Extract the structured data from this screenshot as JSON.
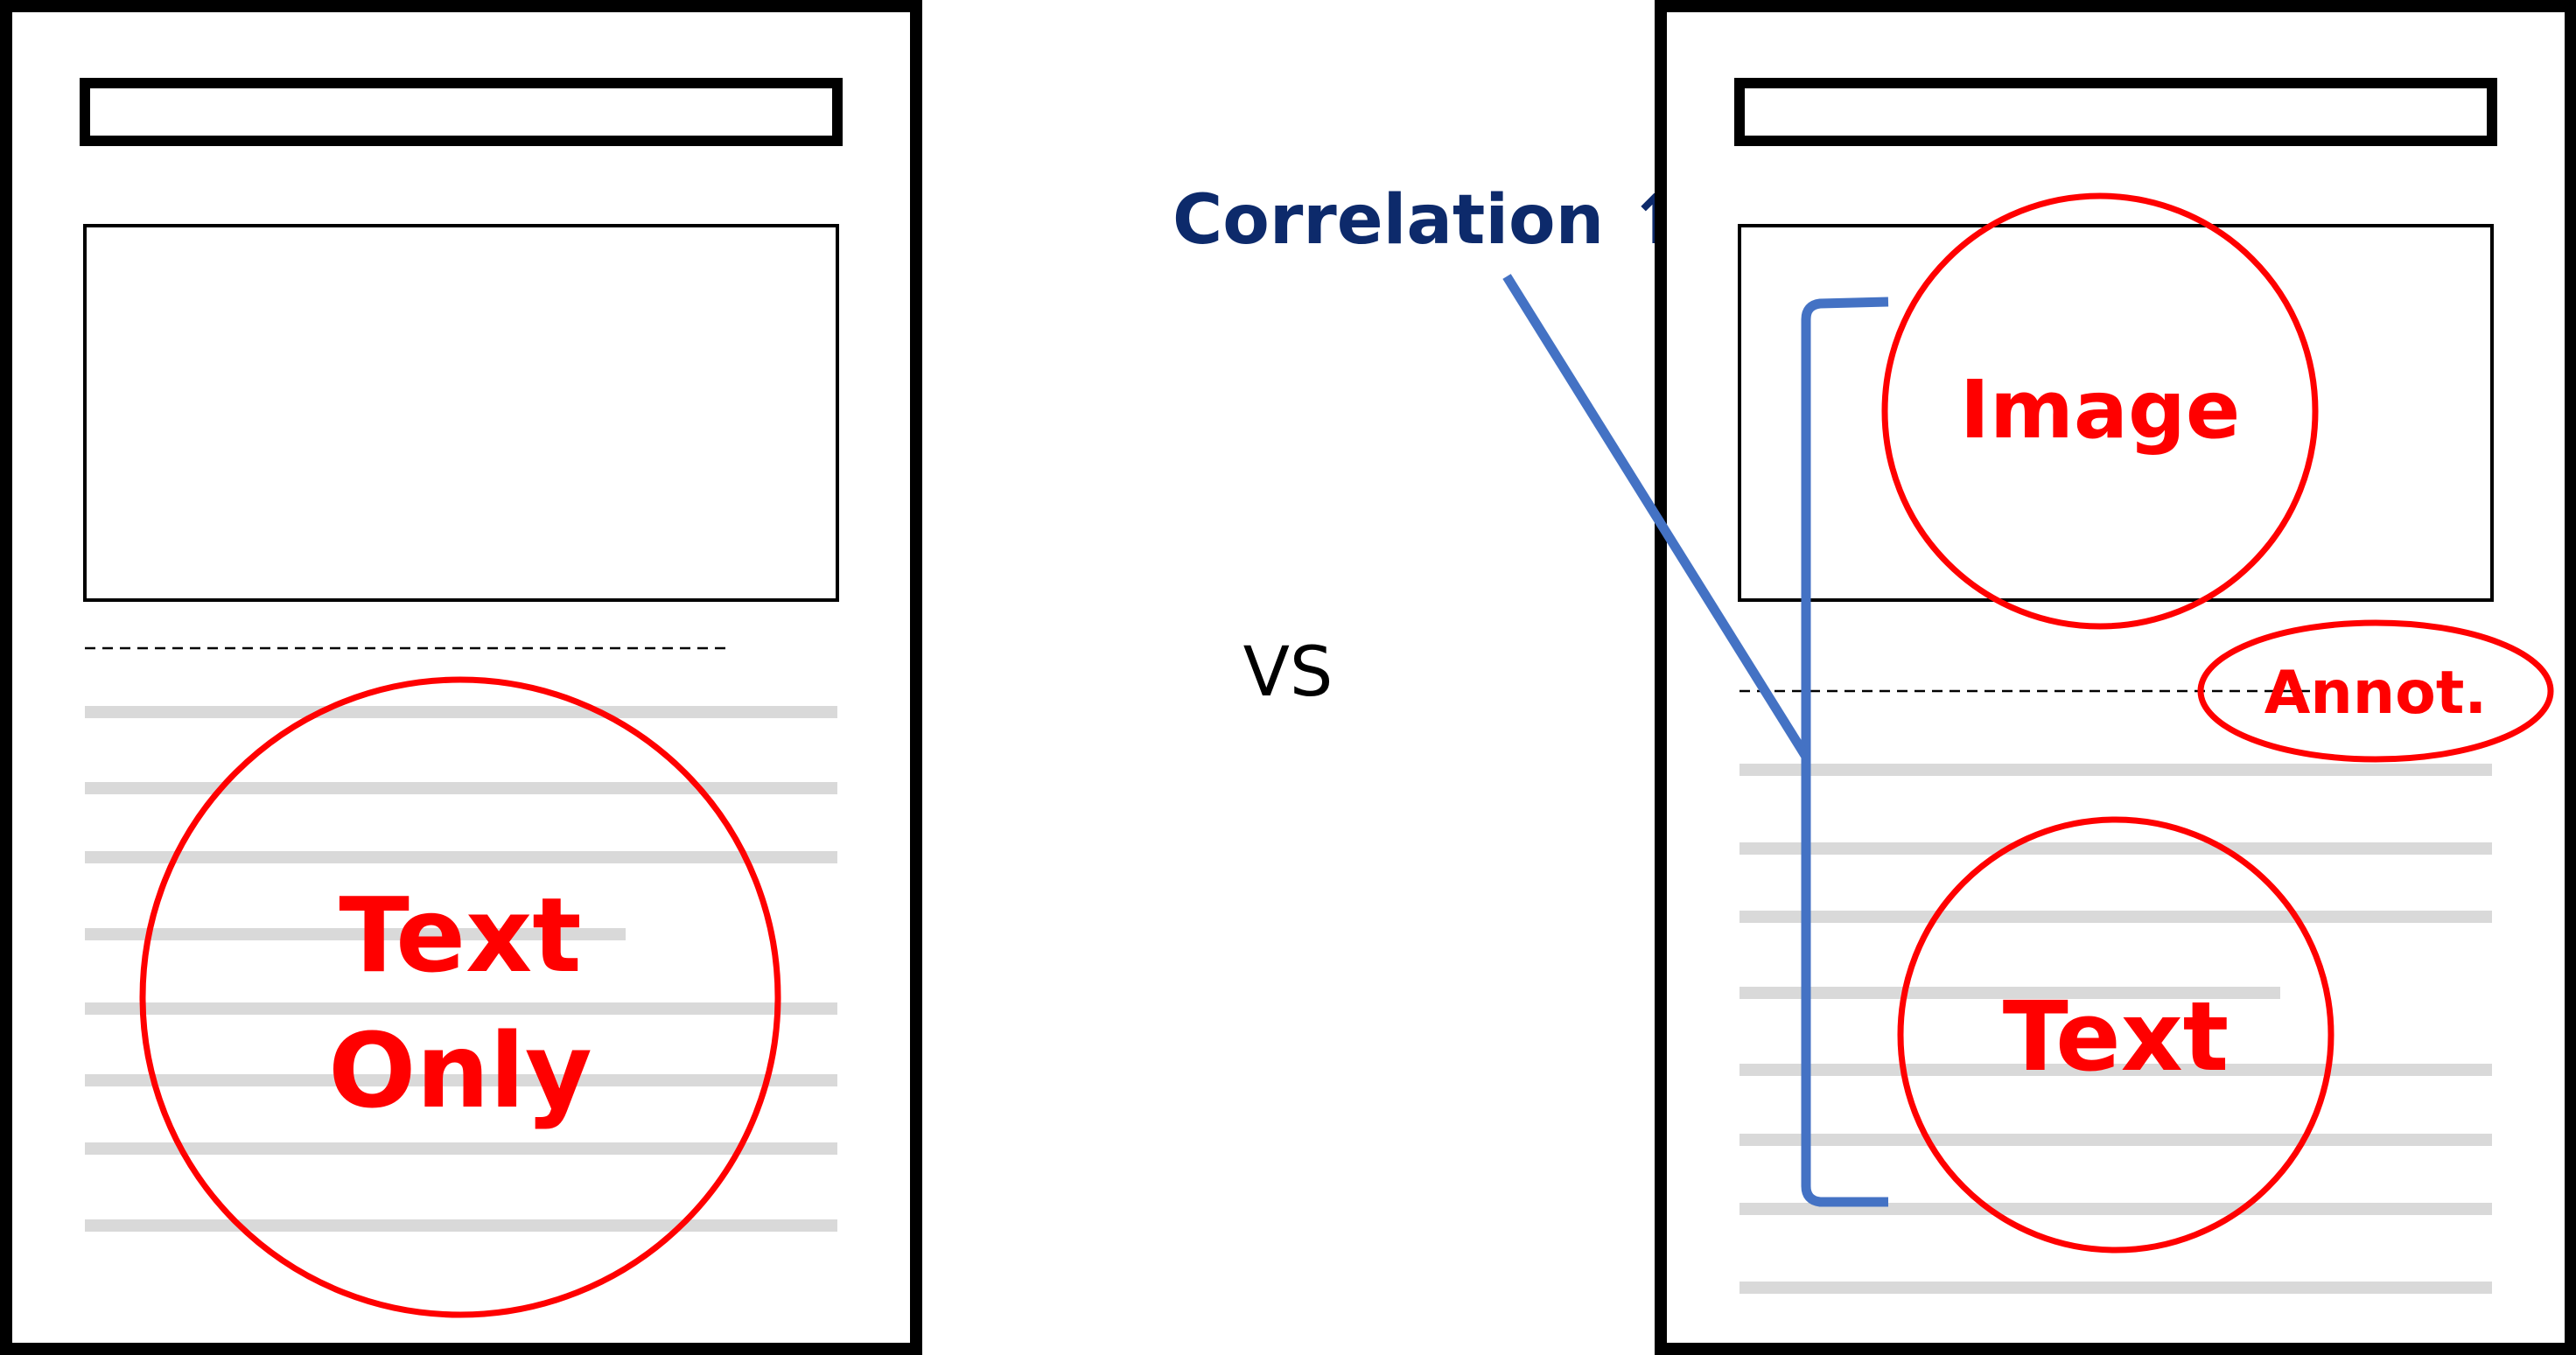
{
  "left_page": {
    "text_label_line1": "Text",
    "text_label_line2": "Only"
  },
  "vs_label": "VS",
  "correlation_label": "Correlation ↑",
  "right_page": {
    "image_label": "Image",
    "annotation_label": "Annot.",
    "text_label": "Text"
  },
  "colors": {
    "highlight": "#ff0000",
    "correlation": "#4472c4",
    "correlation_text": "#0d2a6b",
    "text_line": "#d9d9d9"
  }
}
